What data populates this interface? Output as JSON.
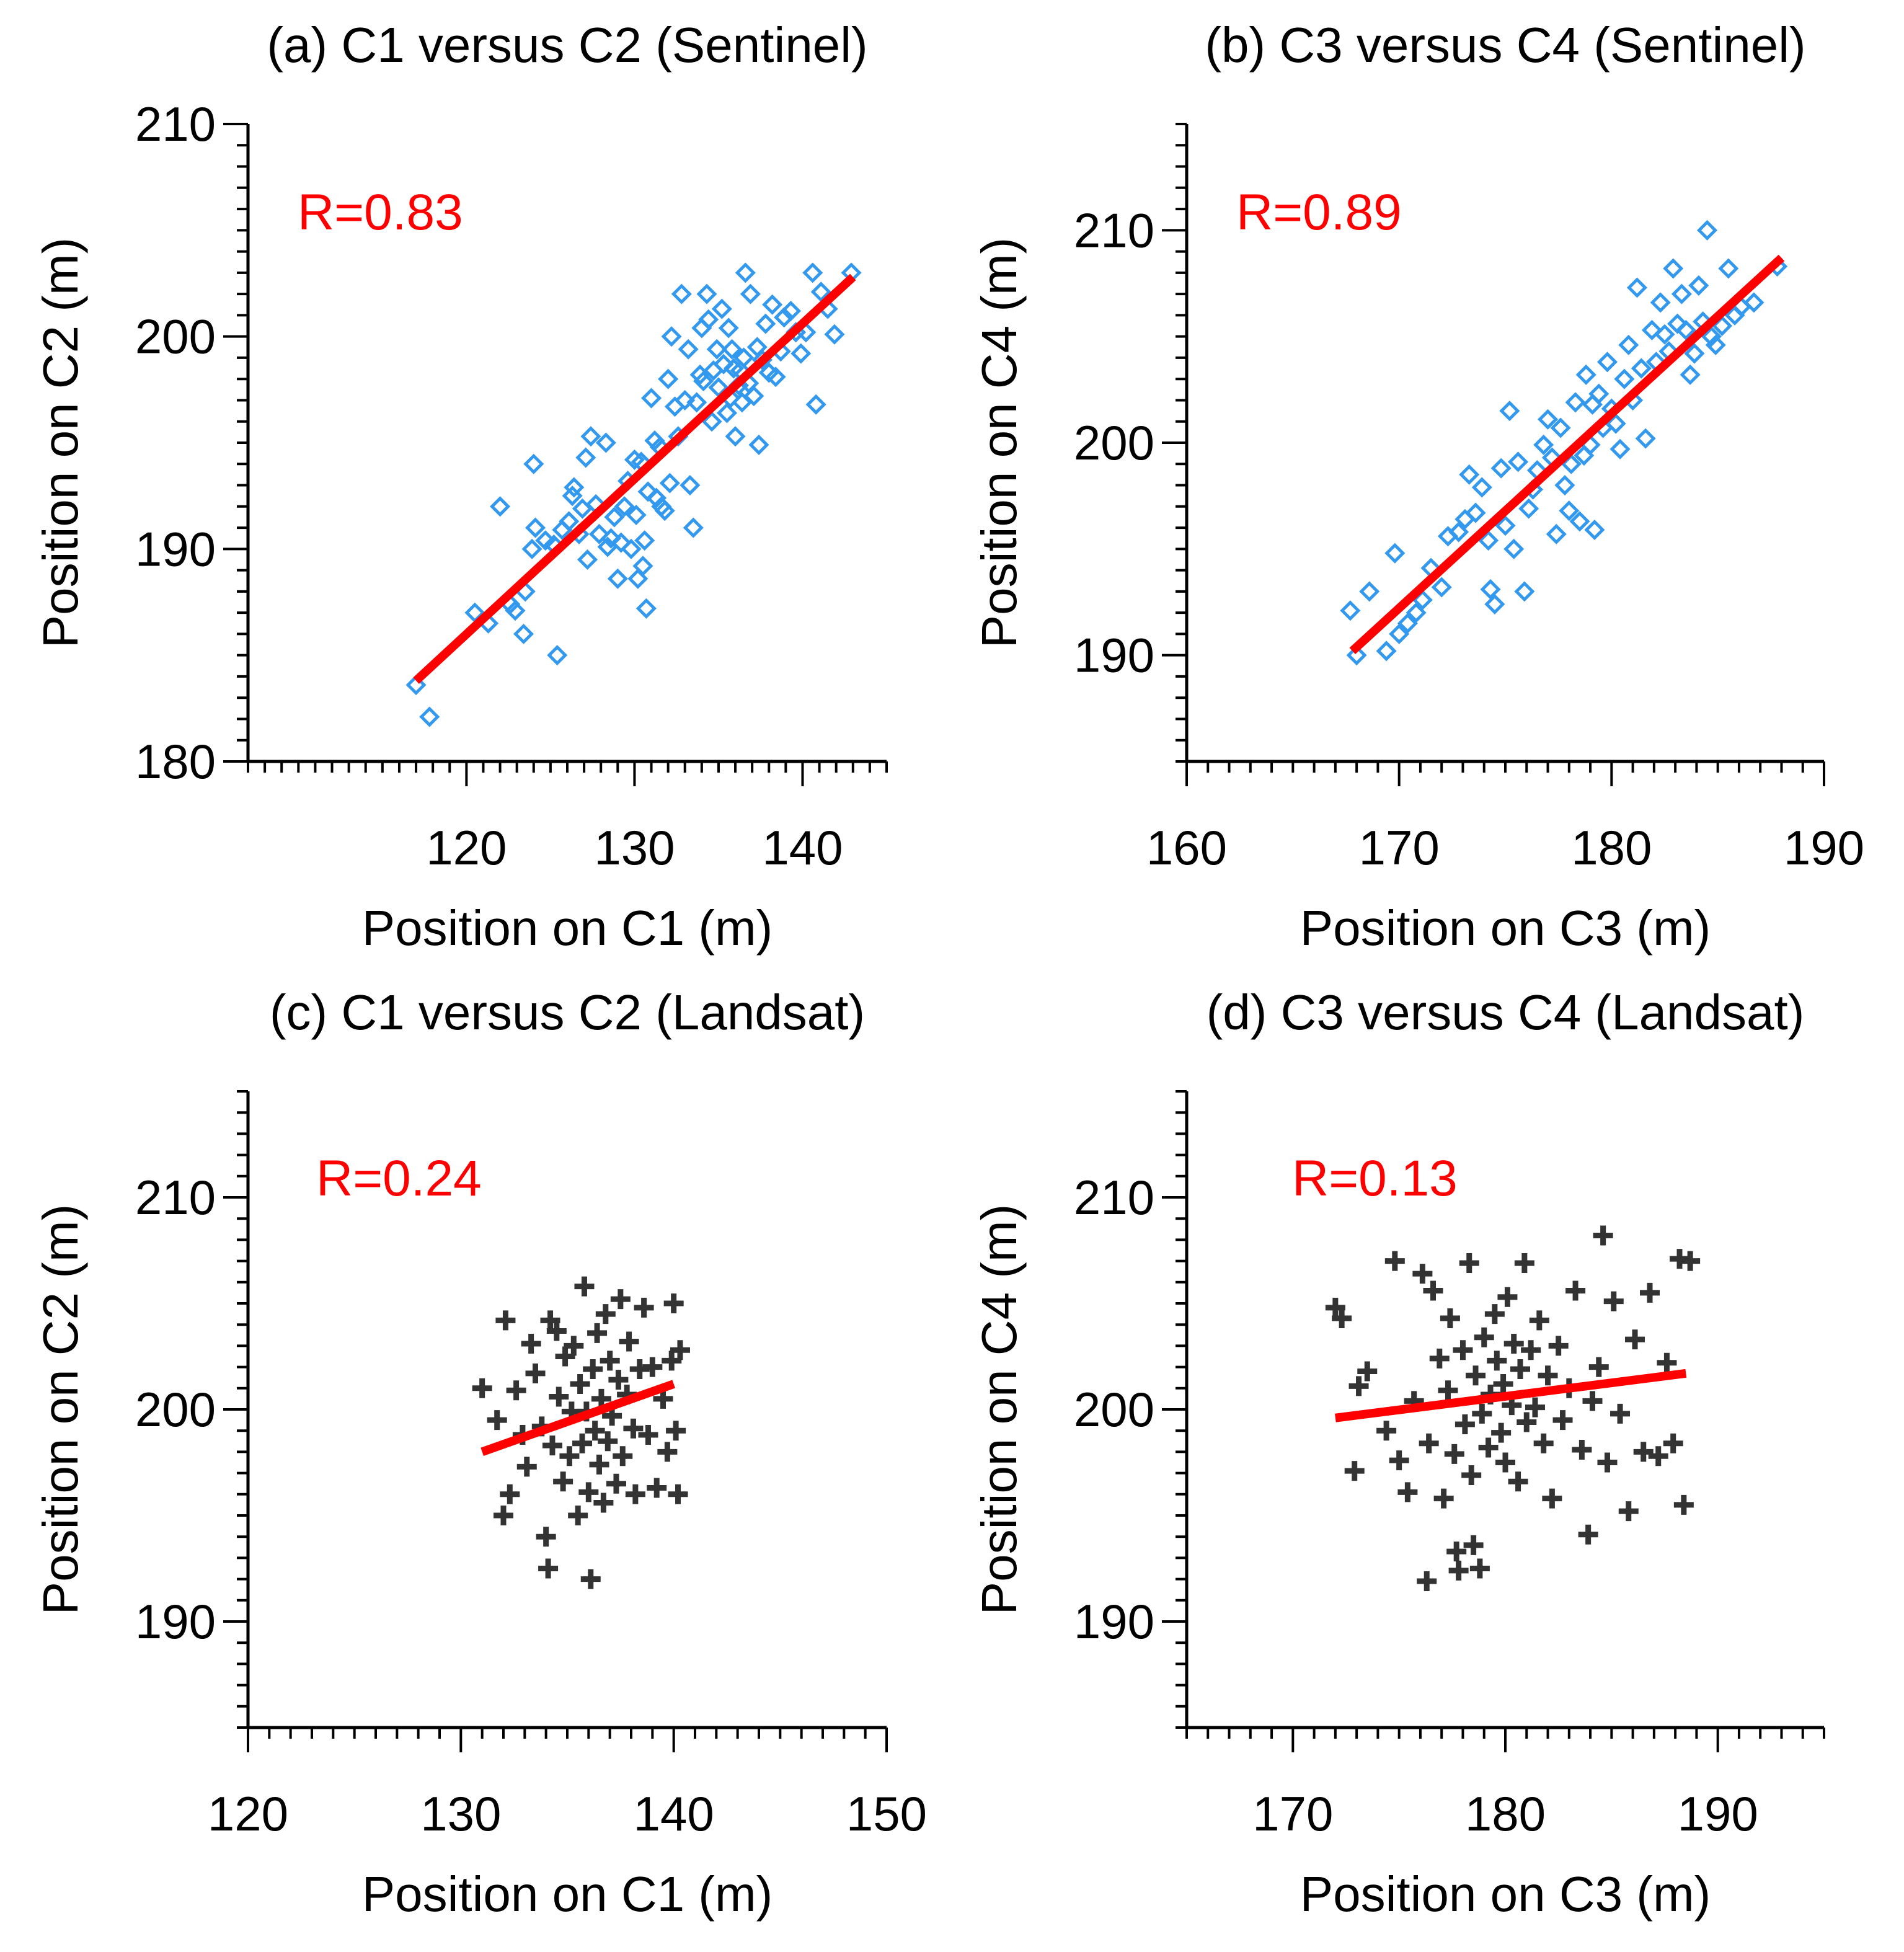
{
  "colors": {
    "axis": "#000000",
    "fit_line": "#ff0000",
    "sentinel_marker": "#3399ee",
    "landsat_marker": "#333333",
    "r_text": "#ff0000"
  },
  "chart_data": [
    {
      "id": "a",
      "type": "scatter",
      "title": "(a) C1 versus C2 (Sentinel)",
      "xlabel": "Position on C1 (m)",
      "ylabel": "Position on C2 (m)",
      "xlim": [
        107,
        145
      ],
      "ylim": [
        180,
        210
      ],
      "xticks": [
        120,
        130,
        140
      ],
      "yticks": [
        180,
        190,
        200,
        210
      ],
      "x_minor_step": 1,
      "y_minor_step": 1,
      "marker": "diamond",
      "annotation": "R=0.83",
      "fit_line": {
        "x": [
          117,
          143
        ],
        "y": [
          183.8,
          202.8
        ]
      },
      "points": [
        [
          117.0,
          183.6
        ],
        [
          117.8,
          182.1
        ],
        [
          120.5,
          187.0
        ],
        [
          121.3,
          186.5
        ],
        [
          122.0,
          192.0
        ],
        [
          122.6,
          187.4
        ],
        [
          122.9,
          187.1
        ],
        [
          123.4,
          186.0
        ],
        [
          123.5,
          188.0
        ],
        [
          123.9,
          190.0
        ],
        [
          124.0,
          194.0
        ],
        [
          124.1,
          191.0
        ],
        [
          124.7,
          190.4
        ],
        [
          125.2,
          190.2
        ],
        [
          125.4,
          185.0
        ],
        [
          125.7,
          190.9
        ],
        [
          126.1,
          191.3
        ],
        [
          126.3,
          192.5
        ],
        [
          126.4,
          192.9
        ],
        [
          126.7,
          190.7
        ],
        [
          126.9,
          191.9
        ],
        [
          127.1,
          194.3
        ],
        [
          127.2,
          189.5
        ],
        [
          127.4,
          195.3
        ],
        [
          127.7,
          192.1
        ],
        [
          127.9,
          190.7
        ],
        [
          128.3,
          195.0
        ],
        [
          128.4,
          190.1
        ],
        [
          128.6,
          190.5
        ],
        [
          128.8,
          191.5
        ],
        [
          129.0,
          188.6
        ],
        [
          129.2,
          190.3
        ],
        [
          129.4,
          192.0
        ],
        [
          129.6,
          193.2
        ],
        [
          129.8,
          190.0
        ],
        [
          130.0,
          194.2
        ],
        [
          130.1,
          191.6
        ],
        [
          130.2,
          188.6
        ],
        [
          130.4,
          194.1
        ],
        [
          130.5,
          189.2
        ],
        [
          130.6,
          190.4
        ],
        [
          130.7,
          187.2
        ],
        [
          130.8,
          192.7
        ],
        [
          131.0,
          197.1
        ],
        [
          131.2,
          195.1
        ],
        [
          131.3,
          192.4
        ],
        [
          131.5,
          194.8
        ],
        [
          131.6,
          192.0
        ],
        [
          131.8,
          191.8
        ],
        [
          132.0,
          198.0
        ],
        [
          132.1,
          193.1
        ],
        [
          132.2,
          200.0
        ],
        [
          132.4,
          196.7
        ],
        [
          132.6,
          195.3
        ],
        [
          132.8,
          202.0
        ],
        [
          133.0,
          197.0
        ],
        [
          133.2,
          199.4
        ],
        [
          133.3,
          193.0
        ],
        [
          133.5,
          191.0
        ],
        [
          133.7,
          196.9
        ],
        [
          133.9,
          198.2
        ],
        [
          134.0,
          200.4
        ],
        [
          134.1,
          197.9
        ],
        [
          134.3,
          202.0
        ],
        [
          134.4,
          200.8
        ],
        [
          134.6,
          196.0
        ],
        [
          134.7,
          198.4
        ],
        [
          134.9,
          199.4
        ],
        [
          135.0,
          197.6
        ],
        [
          135.2,
          201.3
        ],
        [
          135.3,
          198.7
        ],
        [
          135.5,
          196.4
        ],
        [
          135.6,
          200.4
        ],
        [
          135.7,
          197.1
        ],
        [
          135.8,
          199.4
        ],
        [
          135.9,
          198.5
        ],
        [
          136.0,
          195.3
        ],
        [
          136.2,
          197.7
        ],
        [
          136.3,
          198.4
        ],
        [
          136.4,
          196.9
        ],
        [
          136.5,
          199.0
        ],
        [
          136.6,
          203.0
        ],
        [
          136.8,
          197.8
        ],
        [
          136.9,
          202.0
        ],
        [
          137.1,
          197.2
        ],
        [
          137.3,
          199.5
        ],
        [
          137.4,
          194.9
        ],
        [
          137.6,
          198.9
        ],
        [
          137.8,
          200.6
        ],
        [
          138.0,
          198.3
        ],
        [
          138.2,
          201.5
        ],
        [
          138.4,
          198.1
        ],
        [
          138.7,
          199.3
        ],
        [
          138.9,
          200.9
        ],
        [
          139.3,
          201.2
        ],
        [
          139.6,
          200.2
        ],
        [
          139.9,
          199.2
        ],
        [
          140.2,
          200.2
        ],
        [
          140.6,
          203.0
        ],
        [
          140.8,
          196.8
        ],
        [
          141.1,
          202.1
        ],
        [
          141.5,
          201.3
        ],
        [
          141.9,
          200.1
        ],
        [
          142.9,
          203.0
        ]
      ]
    },
    {
      "id": "b",
      "type": "scatter",
      "title": "(b) C3 versus C4 (Sentinel)",
      "xlabel": "Position on C3 (m)",
      "ylabel": "Position on C4 (m)",
      "xlim": [
        160,
        190
      ],
      "ylim": [
        185,
        215
      ],
      "xticks": [
        160,
        170,
        180,
        190
      ],
      "yticks": [
        190,
        200,
        210
      ],
      "x_minor_step": 1,
      "y_minor_step": 1,
      "marker": "diamond",
      "annotation": "R=0.89",
      "fit_line": {
        "x": [
          167.8,
          188.0
        ],
        "y": [
          190.2,
          208.7
        ]
      },
      "points": [
        [
          167.7,
          192.1
        ],
        [
          168.0,
          190.0
        ],
        [
          168.6,
          193.0
        ],
        [
          169.4,
          190.2
        ],
        [
          169.8,
          194.8
        ],
        [
          170.0,
          191.0
        ],
        [
          170.4,
          191.5
        ],
        [
          170.8,
          192.0
        ],
        [
          171.1,
          192.6
        ],
        [
          171.5,
          194.1
        ],
        [
          172.0,
          193.2
        ],
        [
          172.3,
          195.6
        ],
        [
          172.8,
          195.8
        ],
        [
          173.1,
          196.4
        ],
        [
          173.3,
          198.5
        ],
        [
          173.6,
          196.7
        ],
        [
          173.9,
          197.9
        ],
        [
          174.2,
          195.4
        ],
        [
          174.3,
          193.1
        ],
        [
          174.5,
          192.4
        ],
        [
          174.8,
          198.8
        ],
        [
          175.0,
          196.1
        ],
        [
          175.2,
          201.5
        ],
        [
          175.4,
          195.0
        ],
        [
          175.6,
          199.1
        ],
        [
          175.9,
          193.0
        ],
        [
          176.1,
          196.9
        ],
        [
          176.3,
          197.8
        ],
        [
          176.5,
          198.7
        ],
        [
          176.8,
          199.9
        ],
        [
          177.0,
          201.1
        ],
        [
          177.2,
          199.3
        ],
        [
          177.4,
          195.7
        ],
        [
          177.6,
          200.7
        ],
        [
          177.8,
          198.0
        ],
        [
          178.0,
          196.8
        ],
        [
          178.1,
          199.0
        ],
        [
          178.3,
          201.9
        ],
        [
          178.5,
          196.3
        ],
        [
          178.7,
          199.4
        ],
        [
          178.8,
          203.2
        ],
        [
          179.0,
          199.9
        ],
        [
          179.1,
          201.8
        ],
        [
          179.2,
          195.9
        ],
        [
          179.4,
          202.3
        ],
        [
          179.6,
          200.7
        ],
        [
          179.8,
          203.8
        ],
        [
          180.0,
          201.6
        ],
        [
          180.2,
          200.9
        ],
        [
          180.4,
          199.7
        ],
        [
          180.6,
          203.0
        ],
        [
          180.8,
          204.6
        ],
        [
          181.0,
          202.0
        ],
        [
          181.2,
          207.3
        ],
        [
          181.4,
          203.5
        ],
        [
          181.6,
          200.2
        ],
        [
          181.9,
          205.3
        ],
        [
          182.1,
          203.8
        ],
        [
          182.3,
          206.6
        ],
        [
          182.5,
          205.1
        ],
        [
          182.7,
          204.3
        ],
        [
          182.9,
          208.2
        ],
        [
          183.1,
          205.6
        ],
        [
          183.3,
          207.0
        ],
        [
          183.5,
          205.3
        ],
        [
          183.7,
          203.2
        ],
        [
          183.9,
          204.2
        ],
        [
          184.1,
          207.4
        ],
        [
          184.3,
          205.7
        ],
        [
          184.5,
          210.0
        ],
        [
          184.7,
          205.0
        ],
        [
          184.9,
          204.6
        ],
        [
          185.2,
          205.5
        ],
        [
          185.5,
          208.2
        ],
        [
          185.8,
          206.0
        ],
        [
          186.1,
          206.4
        ],
        [
          186.7,
          206.6
        ],
        [
          187.8,
          208.3
        ]
      ]
    },
    {
      "id": "c",
      "type": "scatter",
      "title": "(c) C1 versus C2 (Landsat)",
      "xlabel": "Position on C1 (m)",
      "ylabel": "Position on C2 (m)",
      "xlim": [
        120,
        150
      ],
      "ylim": [
        185,
        215
      ],
      "xticks": [
        120,
        130,
        140,
        150
      ],
      "yticks": [
        190,
        200,
        210
      ],
      "x_minor_step": 1,
      "y_minor_step": 1,
      "marker": "plus",
      "annotation": "R=0.24",
      "fit_line": {
        "x": [
          131.0,
          140.0
        ],
        "y": [
          198.0,
          201.2
        ]
      },
      "points": [
        [
          131.0,
          201.0
        ],
        [
          131.7,
          199.5
        ],
        [
          132.0,
          195.0
        ],
        [
          132.1,
          204.2
        ],
        [
          132.3,
          196.0
        ],
        [
          132.6,
          200.9
        ],
        [
          132.9,
          198.8
        ],
        [
          133.1,
          197.3
        ],
        [
          133.3,
          203.1
        ],
        [
          133.5,
          201.7
        ],
        [
          133.8,
          199.2
        ],
        [
          134.0,
          194.0
        ],
        [
          134.1,
          192.5
        ],
        [
          134.2,
          204.2
        ],
        [
          134.3,
          198.3
        ],
        [
          134.5,
          203.7
        ],
        [
          134.6,
          200.6
        ],
        [
          134.8,
          196.6
        ],
        [
          134.9,
          202.5
        ],
        [
          135.1,
          197.8
        ],
        [
          135.2,
          199.9
        ],
        [
          135.3,
          203.0
        ],
        [
          135.5,
          195.0
        ],
        [
          135.6,
          201.2
        ],
        [
          135.7,
          198.4
        ],
        [
          135.8,
          205.8
        ],
        [
          135.9,
          199.9
        ],
        [
          136.0,
          196.1
        ],
        [
          136.1,
          192.0
        ],
        [
          136.2,
          201.9
        ],
        [
          136.3,
          199.0
        ],
        [
          136.4,
          203.6
        ],
        [
          136.5,
          197.4
        ],
        [
          136.6,
          200.5
        ],
        [
          136.7,
          195.6
        ],
        [
          136.8,
          204.5
        ],
        [
          136.9,
          198.5
        ],
        [
          137.0,
          202.3
        ],
        [
          137.1,
          199.7
        ],
        [
          137.3,
          196.5
        ],
        [
          137.4,
          201.4
        ],
        [
          137.5,
          205.2
        ],
        [
          137.6,
          197.8
        ],
        [
          137.8,
          200.7
        ],
        [
          137.9,
          203.2
        ],
        [
          138.1,
          199.1
        ],
        [
          138.2,
          196.0
        ],
        [
          138.4,
          201.9
        ],
        [
          138.6,
          204.8
        ],
        [
          138.8,
          198.8
        ],
        [
          139.0,
          202.0
        ],
        [
          139.2,
          196.3
        ],
        [
          139.5,
          200.5
        ],
        [
          139.7,
          198.0
        ],
        [
          139.9,
          202.3
        ],
        [
          140.0,
          205.0
        ],
        [
          140.1,
          199.0
        ],
        [
          140.2,
          196.0
        ],
        [
          140.3,
          202.8
        ]
      ]
    },
    {
      "id": "d",
      "type": "scatter",
      "title": "(d) C3 versus C4 (Landsat)",
      "xlabel": "Position on C3 (m)",
      "ylabel": "Position on C4 (m)",
      "xlim": [
        165,
        195
      ],
      "ylim": [
        185,
        215
      ],
      "xticks": [
        170,
        180,
        190
      ],
      "yticks": [
        190,
        200,
        210
      ],
      "x_minor_step": 1,
      "y_minor_step": 1,
      "marker": "plus",
      "annotation": "R=0.13",
      "fit_line": {
        "x": [
          172.0,
          188.5
        ],
        "y": [
          199.6,
          201.7
        ]
      },
      "points": [
        [
          172.0,
          204.8
        ],
        [
          172.3,
          204.3
        ],
        [
          172.9,
          197.1
        ],
        [
          173.1,
          201.1
        ],
        [
          173.5,
          201.8
        ],
        [
          174.4,
          199.0
        ],
        [
          174.8,
          207.0
        ],
        [
          175.0,
          197.6
        ],
        [
          175.4,
          196.1
        ],
        [
          175.7,
          200.4
        ],
        [
          176.1,
          206.4
        ],
        [
          176.3,
          191.9
        ],
        [
          176.4,
          198.4
        ],
        [
          176.6,
          205.6
        ],
        [
          176.9,
          202.4
        ],
        [
          177.1,
          195.8
        ],
        [
          177.3,
          200.9
        ],
        [
          177.4,
          204.3
        ],
        [
          177.6,
          197.9
        ],
        [
          177.7,
          193.3
        ],
        [
          177.8,
          192.4
        ],
        [
          178.0,
          202.8
        ],
        [
          178.1,
          199.3
        ],
        [
          178.3,
          206.9
        ],
        [
          178.4,
          196.9
        ],
        [
          178.5,
          193.6
        ],
        [
          178.6,
          201.6
        ],
        [
          178.8,
          192.5
        ],
        [
          178.9,
          199.8
        ],
        [
          179.0,
          203.4
        ],
        [
          179.2,
          198.2
        ],
        [
          179.3,
          200.7
        ],
        [
          179.5,
          204.5
        ],
        [
          179.6,
          202.3
        ],
        [
          179.8,
          198.9
        ],
        [
          179.9,
          201.2
        ],
        [
          180.0,
          197.5
        ],
        [
          180.1,
          205.3
        ],
        [
          180.3,
          200.2
        ],
        [
          180.4,
          203.1
        ],
        [
          180.6,
          196.6
        ],
        [
          180.7,
          201.9
        ],
        [
          180.9,
          206.9
        ],
        [
          181.0,
          199.4
        ],
        [
          181.2,
          202.8
        ],
        [
          181.4,
          200.1
        ],
        [
          181.6,
          204.2
        ],
        [
          181.8,
          198.4
        ],
        [
          182.0,
          201.6
        ],
        [
          182.2,
          195.8
        ],
        [
          182.5,
          203.0
        ],
        [
          182.7,
          199.5
        ],
        [
          183.0,
          201.0
        ],
        [
          183.3,
          205.6
        ],
        [
          183.6,
          198.1
        ],
        [
          183.9,
          194.1
        ],
        [
          184.1,
          200.4
        ],
        [
          184.4,
          202.0
        ],
        [
          184.6,
          208.2
        ],
        [
          184.8,
          197.5
        ],
        [
          185.1,
          205.1
        ],
        [
          185.4,
          199.8
        ],
        [
          185.8,
          195.2
        ],
        [
          186.1,
          203.3
        ],
        [
          186.5,
          198.0
        ],
        [
          186.8,
          205.5
        ],
        [
          187.2,
          197.8
        ],
        [
          187.6,
          202.2
        ],
        [
          187.9,
          198.4
        ],
        [
          188.2,
          207.1
        ],
        [
          188.4,
          195.5
        ],
        [
          188.7,
          207.0
        ]
      ]
    }
  ]
}
